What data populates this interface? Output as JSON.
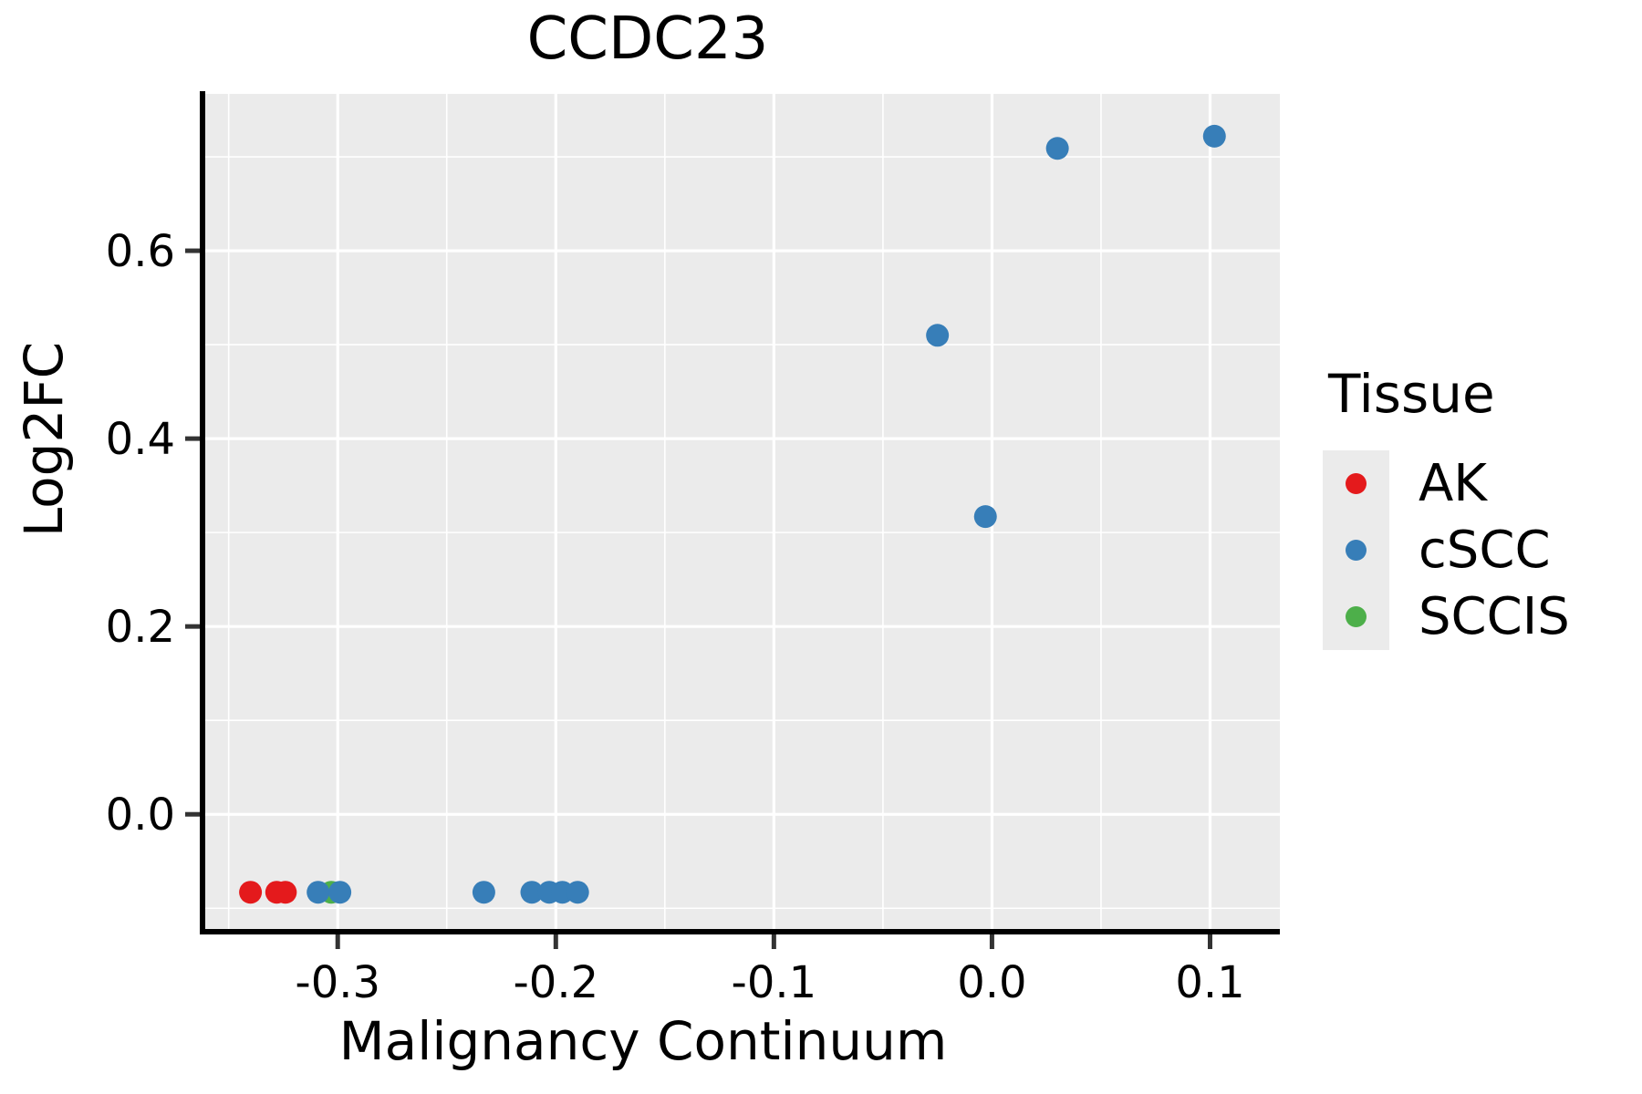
{
  "chart_data": {
    "type": "scatter",
    "title": "CCDC23",
    "xlabel": "Malignancy Continuum",
    "ylabel": "Log2FC",
    "legend_title": "Tissue",
    "legend_position": "right",
    "grid": true,
    "panel_bg": "#EBEBEB",
    "grid_color": "#FFFFFF",
    "axis_color": "#000000",
    "tick_color": "#333333",
    "xlim": [
      -0.362,
      0.132
    ],
    "ylim": [
      -0.125,
      0.767
    ],
    "x_major_ticks": [
      -0.3,
      -0.2,
      -0.1,
      0.0,
      0.1
    ],
    "x_tick_labels": [
      "-0.3",
      "-0.2",
      "-0.1",
      "0.0",
      "0.1"
    ],
    "y_major_ticks": [
      0.0,
      0.2,
      0.4,
      0.6
    ],
    "y_tick_labels": [
      "0.0",
      "0.2",
      "0.4",
      "0.6"
    ],
    "x_minor_ticks": [
      -0.35,
      -0.25,
      -0.15,
      -0.05,
      0.05
    ],
    "y_minor_ticks": [
      -0.1,
      0.1,
      0.3,
      0.5,
      0.7
    ],
    "point_radius_px": 12.5,
    "series": [
      {
        "name": "AK",
        "color": "#E41A1C",
        "points": [
          [
            -0.34,
            -0.083
          ],
          [
            -0.328,
            -0.083
          ],
          [
            -0.324,
            -0.083
          ]
        ]
      },
      {
        "name": "cSCC",
        "color": "#377EB8",
        "points": [
          [
            -0.309,
            -0.083
          ],
          [
            -0.299,
            -0.083
          ],
          [
            -0.233,
            -0.083
          ],
          [
            -0.211,
            -0.083
          ],
          [
            -0.203,
            -0.083
          ],
          [
            -0.197,
            -0.083
          ],
          [
            -0.19,
            -0.083
          ],
          [
            -0.025,
            0.51
          ],
          [
            -0.003,
            0.317
          ],
          [
            0.03,
            0.709
          ],
          [
            0.102,
            0.722
          ]
        ]
      },
      {
        "name": "SCCIS",
        "color": "#4DAF4A",
        "points": [
          [
            -0.303,
            -0.083
          ]
        ]
      }
    ]
  }
}
